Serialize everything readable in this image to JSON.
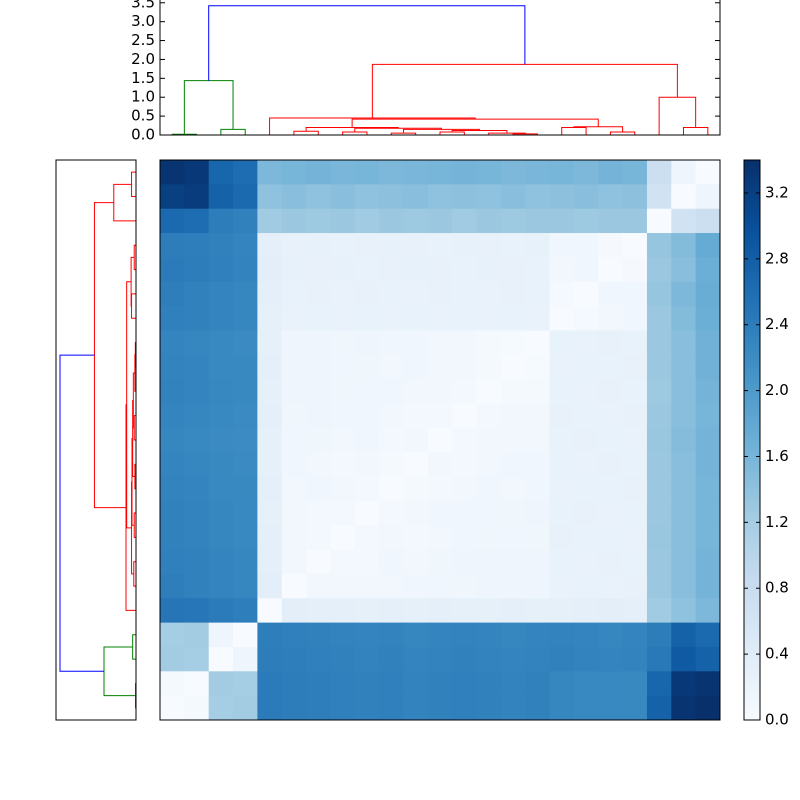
{
  "chart_data": {
    "type": "clustermap",
    "colormap": "Blues",
    "colorbar_lim": [
      0,
      3.4
    ],
    "colorbar_ticks": [
      {
        "value": 0,
        "label": "0.0"
      },
      {
        "value": 0.4,
        "label": "0.4"
      },
      {
        "value": 0.8,
        "label": "0.8"
      },
      {
        "value": 1.2,
        "label": "1.2"
      },
      {
        "value": 1.6,
        "label": "1.6"
      },
      {
        "value": 2.0,
        "label": "2.0"
      },
      {
        "value": 2.4,
        "label": "2.4"
      },
      {
        "value": 2.8,
        "label": "2.8"
      },
      {
        "value": 3.2,
        "label": "3.2"
      }
    ],
    "dendrogram_lim": [
      0,
      3.6
    ],
    "dendrogram_ticks": [
      {
        "value": 0,
        "label": "0.0"
      },
      {
        "value": 0.5,
        "label": "0.5"
      },
      {
        "value": 1.0,
        "label": "1.0"
      },
      {
        "value": 1.5,
        "label": "1.5"
      },
      {
        "value": 2.0,
        "label": "2.0"
      },
      {
        "value": 2.5,
        "label": "2.5"
      },
      {
        "value": 3.0,
        "label": "3.0"
      },
      {
        "value": 3.5,
        "label": "3.5"
      }
    ],
    "linkage": [
      {
        "children": [
          0,
          1
        ],
        "height": 0.02,
        "color": "#008000"
      },
      {
        "children": [
          2,
          3
        ],
        "height": 0.15,
        "color": "#008000"
      },
      {
        "children": [
          23,
          24
        ],
        "height": 1.44,
        "color": "#008000"
      },
      {
        "children": [
          5,
          6
        ],
        "height": 0.1,
        "color": "#ff0000"
      },
      {
        "children": [
          7,
          8
        ],
        "height": 0.08,
        "color": "#ff0000"
      },
      {
        "children": [
          9,
          10
        ],
        "height": 0.05,
        "color": "#ff0000"
      },
      {
        "children": [
          11,
          12
        ],
        "height": 0.08,
        "color": "#ff0000"
      },
      {
        "children": [
          14,
          15
        ],
        "height": 0.03,
        "color": "#ff0000"
      },
      {
        "children": [
          13,
          30
        ],
        "height": 0.05,
        "color": "#ff0000"
      },
      {
        "children": [
          29,
          31
        ],
        "height": 0.12,
        "color": "#ff0000"
      },
      {
        "children": [
          28,
          32
        ],
        "height": 0.15,
        "color": "#ff0000"
      },
      {
        "children": [
          27,
          33
        ],
        "height": 0.18,
        "color": "#ff0000"
      },
      {
        "children": [
          26,
          34
        ],
        "height": 0.2,
        "color": "#ff0000"
      },
      {
        "children": [
          16,
          17
        ],
        "height": 0.2,
        "color": "#ff0000"
      },
      {
        "children": [
          18,
          19
        ],
        "height": 0.08,
        "color": "#ff0000"
      },
      {
        "children": [
          36,
          37
        ],
        "height": 0.22,
        "color": "#ff0000"
      },
      {
        "children": [
          35,
          38
        ],
        "height": 0.42,
        "color": "#ff0000"
      },
      {
        "children": [
          4,
          39
        ],
        "height": 0.45,
        "color": "#ff0000"
      },
      {
        "children": [
          21,
          22
        ],
        "height": 0.2,
        "color": "#ff0000"
      },
      {
        "children": [
          20,
          41
        ],
        "height": 1.0,
        "color": "#ff0000"
      },
      {
        "children": [
          40,
          42
        ],
        "height": 1.87,
        "color": "#ff0000"
      },
      {
        "children": [
          25,
          43
        ],
        "height": 3.42,
        "color": "#0000ff"
      }
    ],
    "matrix": [
      [
        3.35,
        3.3,
        2.7,
        2.6,
        1.55,
        1.6,
        1.62,
        1.58,
        1.6,
        1.55,
        1.58,
        1.6,
        1.62,
        1.6,
        1.55,
        1.58,
        1.6,
        1.55,
        1.62,
        1.6,
        0.75,
        0.15,
        0
      ],
      [
        3.2,
        3.25,
        2.75,
        2.65,
        1.4,
        1.45,
        1.4,
        1.45,
        1.4,
        1.42,
        1.45,
        1.4,
        1.42,
        1.4,
        1.45,
        1.4,
        1.42,
        1.45,
        1.4,
        1.42,
        0.65,
        0,
        0.15
      ],
      [
        2.65,
        2.6,
        2.4,
        2.35,
        1.25,
        1.3,
        1.28,
        1.3,
        1.25,
        1.3,
        1.28,
        1.3,
        1.25,
        1.3,
        1.28,
        1.3,
        1.3,
        1.28,
        1.3,
        1.3,
        0,
        0.65,
        0.75
      ],
      [
        2.4,
        2.38,
        2.35,
        2.3,
        0.33,
        0.26,
        0.27,
        0.25,
        0.26,
        0.27,
        0.26,
        0.25,
        0.27,
        0.26,
        0.25,
        0.27,
        0.12,
        0.13,
        0.04,
        0,
        1.35,
        1.5,
        1.75
      ],
      [
        2.42,
        2.4,
        2.36,
        2.32,
        0.34,
        0.27,
        0.26,
        0.27,
        0.25,
        0.26,
        0.27,
        0.26,
        0.25,
        0.27,
        0.26,
        0.25,
        0.11,
        0.12,
        0,
        0.04,
        1.3,
        1.45,
        1.7
      ],
      [
        2.38,
        2.35,
        2.3,
        2.28,
        0.32,
        0.25,
        0.26,
        0.24,
        0.26,
        0.25,
        0.24,
        0.26,
        0.25,
        0.24,
        0.26,
        0.25,
        0.06,
        0,
        0.12,
        0.13,
        1.35,
        1.55,
        1.72
      ],
      [
        2.36,
        2.34,
        2.3,
        2.28,
        0.3,
        0.24,
        0.25,
        0.24,
        0.25,
        0.24,
        0.25,
        0.24,
        0.25,
        0.24,
        0.25,
        0.24,
        0,
        0.06,
        0.11,
        0.12,
        1.3,
        1.5,
        1.7
      ],
      [
        2.3,
        2.28,
        2.25,
        2.22,
        0.3,
        0.16,
        0.15,
        0.14,
        0.15,
        0.12,
        0.13,
        0.1,
        0.11,
        0.05,
        0.03,
        0,
        0.25,
        0.24,
        0.26,
        0.25,
        1.3,
        1.45,
        1.65
      ],
      [
        2.32,
        2.3,
        2.26,
        2.24,
        0.31,
        0.15,
        0.16,
        0.13,
        0.14,
        0.11,
        0.12,
        0.1,
        0.11,
        0.05,
        0,
        0.03,
        0.24,
        0.25,
        0.25,
        0.26,
        1.3,
        1.45,
        1.65
      ],
      [
        2.33,
        2.3,
        2.27,
        2.24,
        0.3,
        0.16,
        0.15,
        0.14,
        0.13,
        0.12,
        0.11,
        0.1,
        0.09,
        0,
        0.05,
        0.05,
        0.25,
        0.24,
        0.26,
        0.25,
        1.28,
        1.45,
        1.62
      ],
      [
        2.3,
        2.28,
        2.25,
        2.22,
        0.31,
        0.14,
        0.15,
        0.12,
        0.13,
        0.1,
        0.09,
        0.08,
        0,
        0.09,
        0.11,
        0.11,
        0.26,
        0.25,
        0.24,
        0.26,
        1.3,
        1.45,
        1.6
      ],
      [
        2.28,
        2.26,
        2.22,
        2.2,
        0.3,
        0.13,
        0.14,
        0.11,
        0.12,
        0.09,
        0.1,
        0,
        0.08,
        0.1,
        0.1,
        0.1,
        0.25,
        0.26,
        0.25,
        0.24,
        1.32,
        1.48,
        1.62
      ],
      [
        2.3,
        2.28,
        2.24,
        2.22,
        0.3,
        0.12,
        0.11,
        0.09,
        0.1,
        0.05,
        0,
        0.1,
        0.09,
        0.11,
        0.12,
        0.13,
        0.25,
        0.24,
        0.26,
        0.25,
        1.3,
        1.45,
        1.62
      ],
      [
        2.32,
        2.3,
        2.26,
        2.24,
        0.31,
        0.11,
        0.12,
        0.1,
        0.08,
        0,
        0.05,
        0.09,
        0.1,
        0.12,
        0.11,
        0.12,
        0.24,
        0.25,
        0.25,
        0.26,
        1.3,
        1.45,
        1.6
      ],
      [
        2.34,
        2.32,
        2.28,
        2.26,
        0.3,
        0.1,
        0.09,
        0.08,
        0,
        0.08,
        0.1,
        0.12,
        0.13,
        0.13,
        0.14,
        0.15,
        0.25,
        0.26,
        0.24,
        0.25,
        1.3,
        1.45,
        1.6
      ],
      [
        2.35,
        2.32,
        2.28,
        2.26,
        0.32,
        0.1,
        0.08,
        0,
        0.08,
        0.1,
        0.09,
        0.11,
        0.12,
        0.14,
        0.13,
        0.14,
        0.26,
        0.25,
        0.25,
        0.24,
        1.32,
        1.45,
        1.6
      ],
      [
        2.36,
        2.34,
        2.3,
        2.28,
        0.33,
        0.1,
        0,
        0.08,
        0.09,
        0.12,
        0.11,
        0.14,
        0.15,
        0.16,
        0.15,
        0.16,
        0.25,
        0.24,
        0.26,
        0.25,
        1.3,
        1.45,
        1.62
      ],
      [
        2.38,
        2.35,
        2.3,
        2.28,
        0.34,
        0,
        0.1,
        0.1,
        0.1,
        0.11,
        0.12,
        0.13,
        0.14,
        0.16,
        0.15,
        0.16,
        0.24,
        0.25,
        0.24,
        0.26,
        1.3,
        1.45,
        1.62
      ],
      [
        2.5,
        2.48,
        2.42,
        2.38,
        0,
        0.34,
        0.33,
        0.32,
        0.3,
        0.31,
        0.3,
        0.31,
        0.3,
        0.3,
        0.31,
        0.3,
        0.3,
        0.32,
        0.34,
        0.33,
        1.25,
        1.4,
        1.55
      ],
      [
        1.2,
        1.22,
        0.15,
        0,
        2.38,
        2.36,
        2.35,
        2.32,
        2.3,
        2.32,
        2.28,
        2.3,
        2.32,
        2.3,
        2.28,
        2.3,
        2.32,
        2.3,
        2.28,
        2.3,
        2.4,
        2.75,
        2.65
      ],
      [
        1.22,
        1.2,
        0,
        0.15,
        2.4,
        2.38,
        2.36,
        2.34,
        2.32,
        2.34,
        2.3,
        2.32,
        2.34,
        2.32,
        2.3,
        2.32,
        2.34,
        2.32,
        2.3,
        2.32,
        2.45,
        2.85,
        2.75
      ],
      [
        0.05,
        0,
        1.22,
        1.2,
        2.42,
        2.4,
        2.38,
        2.36,
        2.34,
        2.36,
        2.32,
        2.34,
        2.36,
        2.34,
        2.32,
        2.34,
        2.28,
        2.26,
        2.25,
        2.24,
        2.7,
        3.3,
        3.35
      ],
      [
        0,
        0.05,
        1.2,
        1.22,
        2.42,
        2.4,
        2.38,
        2.36,
        2.34,
        2.36,
        2.32,
        2.34,
        2.36,
        2.34,
        2.32,
        2.34,
        2.28,
        2.26,
        2.25,
        2.24,
        2.75,
        3.35,
        3.4
      ]
    ]
  }
}
